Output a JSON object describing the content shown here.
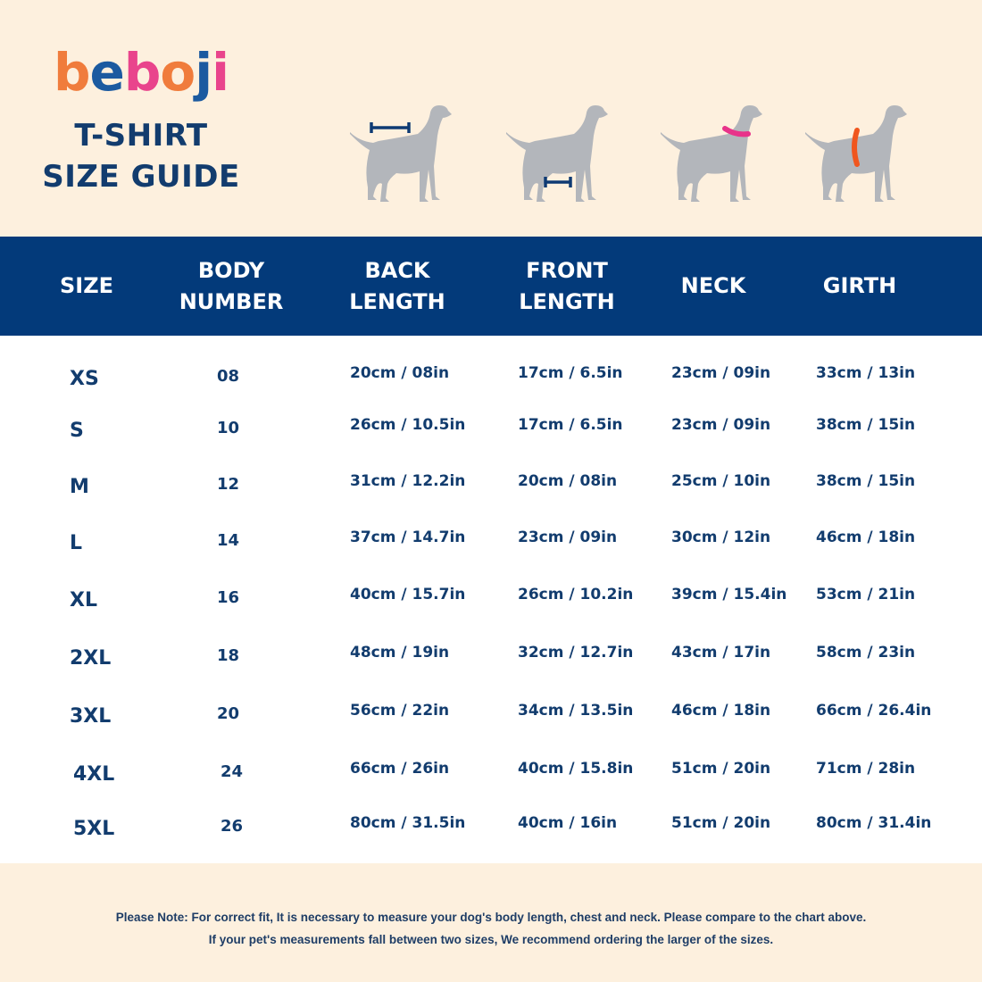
{
  "brand": {
    "logo_letters": [
      {
        "ch": "b",
        "color": "#f07c3c"
      },
      {
        "ch": "e",
        "color": "#1b5aa0"
      },
      {
        "ch": "b",
        "color": "#e9448c"
      },
      {
        "ch": "o",
        "color": "#f07c3c"
      },
      {
        "ch": "j",
        "color": "#1b5aa0"
      },
      {
        "ch": "i",
        "color": "#e9448c"
      }
    ],
    "title_line1": "T-SHIRT",
    "title_line2": "SIZE GUIDE"
  },
  "illustrations": [
    {
      "name": "back-length-dog-icon",
      "marker": "back",
      "marker_color": "#0e3a73"
    },
    {
      "name": "front-length-dog-icon",
      "marker": "front",
      "marker_color": "#0e3a73"
    },
    {
      "name": "neck-dog-icon",
      "marker": "neck",
      "marker_color": "#e8338a"
    },
    {
      "name": "girth-dog-icon",
      "marker": "girth",
      "marker_color": "#f0561e"
    }
  ],
  "colors": {
    "background": "#fdf0de",
    "header": "#033a7a",
    "text": "#123c6e",
    "dog": "#b3b6bb"
  },
  "table": {
    "headers": [
      "SIZE",
      "BODY\nNUMBER",
      "BACK\nLENGTH",
      "FRONT\nLENGTH",
      "NECK",
      "GIRTH"
    ],
    "rows": [
      [
        "XS",
        "08",
        "20cm / 08in",
        "17cm / 6.5in",
        "23cm / 09in",
        "33cm / 13in"
      ],
      [
        "S",
        "10",
        "26cm / 10.5in",
        "17cm / 6.5in",
        "23cm / 09in",
        "38cm / 15in"
      ],
      [
        "M",
        "12",
        "31cm / 12.2in",
        "20cm / 08in",
        "25cm / 10in",
        "38cm / 15in"
      ],
      [
        "L",
        "14",
        "37cm / 14.7in",
        "23cm / 09in",
        "30cm / 12in",
        "46cm / 18in"
      ],
      [
        "XL",
        "16",
        "40cm / 15.7in",
        "26cm / 10.2in",
        "39cm / 15.4in",
        "53cm / 21in"
      ],
      [
        "2XL",
        "18",
        "48cm / 19in",
        "32cm / 12.7in",
        "43cm / 17in",
        "58cm / 23in"
      ],
      [
        "3XL",
        "20",
        "56cm / 22in",
        "34cm / 13.5in",
        "46cm / 18in",
        "66cm / 26.4in"
      ],
      [
        "4XL",
        "24",
        "66cm / 26in",
        "40cm / 15.8in",
        "51cm / 20in",
        "71cm / 28in"
      ],
      [
        "5XL",
        "26",
        "80cm / 31.5in",
        "40cm / 16in",
        "51cm / 20in",
        "80cm / 31.4in"
      ]
    ]
  },
  "footer": {
    "note_line1": "Please Note: For correct fit, It is necessary to measure your dog's body length, chest and neck. Please compare to the chart above.",
    "note_line2": "If your pet's measurements fall between two sizes, We recommend ordering the larger of the sizes."
  },
  "chart_data": {
    "type": "table",
    "title": "beboji T-SHIRT SIZE GUIDE",
    "columns": [
      "SIZE",
      "BODY NUMBER",
      "BACK LENGTH",
      "FRONT LENGTH",
      "NECK",
      "GIRTH"
    ],
    "rows": [
      {
        "size": "XS",
        "body_number": "08",
        "back_length": "20cm / 08in",
        "front_length": "17cm / 6.5in",
        "neck": "23cm / 09in",
        "girth": "33cm / 13in"
      },
      {
        "size": "S",
        "body_number": "10",
        "back_length": "26cm / 10.5in",
        "front_length": "17cm / 6.5in",
        "neck": "23cm / 09in",
        "girth": "38cm / 15in"
      },
      {
        "size": "M",
        "body_number": "12",
        "back_length": "31cm / 12.2in",
        "front_length": "20cm / 08in",
        "neck": "25cm / 10in",
        "girth": "38cm / 15in"
      },
      {
        "size": "L",
        "body_number": "14",
        "back_length": "37cm / 14.7in",
        "front_length": "23cm / 09in",
        "neck": "30cm / 12in",
        "girth": "46cm / 18in"
      },
      {
        "size": "XL",
        "body_number": "16",
        "back_length": "40cm / 15.7in",
        "front_length": "26cm / 10.2in",
        "neck": "39cm / 15.4in",
        "girth": "53cm / 21in"
      },
      {
        "size": "2XL",
        "body_number": "18",
        "back_length": "48cm / 19in",
        "front_length": "32cm / 12.7in",
        "neck": "43cm / 17in",
        "girth": "58cm / 23in"
      },
      {
        "size": "3XL",
        "body_number": "20",
        "back_length": "56cm / 22in",
        "front_length": "34cm / 13.5in",
        "neck": "46cm / 18in",
        "girth": "66cm / 26.4in"
      },
      {
        "size": "4XL",
        "body_number": "24",
        "back_length": "66cm / 26in",
        "front_length": "40cm / 15.8in",
        "neck": "51cm / 20in",
        "girth": "71cm / 28in"
      },
      {
        "size": "5XL",
        "body_number": "26",
        "back_length": "80cm / 31.5in",
        "front_length": "40cm / 16in",
        "neck": "51cm / 20in",
        "girth": "80cm / 31.4in"
      }
    ]
  }
}
